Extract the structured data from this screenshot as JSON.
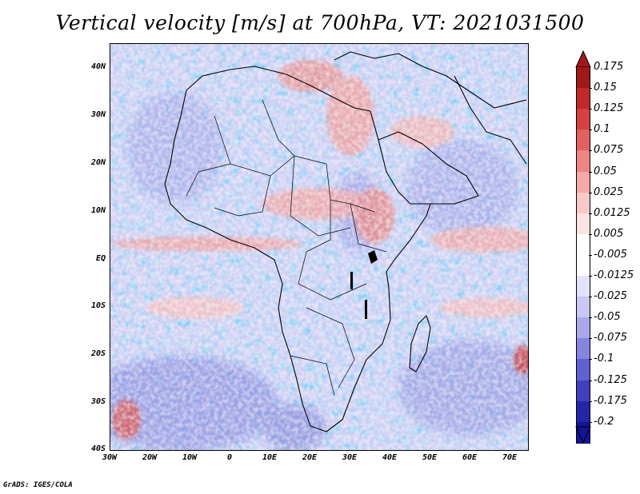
{
  "title": "Vertical velocity [m/s] at 700hPa, VT: 2021031500",
  "footer": "GrADS: IGES/COLA",
  "lat_labels": [
    "40N",
    "30N",
    "20N",
    "10N",
    "EQ",
    "10S",
    "20S",
    "30S",
    "40S"
  ],
  "lon_labels": [
    "30W",
    "20W",
    "10W",
    "0",
    "10E",
    "20E",
    "30E",
    "40E",
    "50E",
    "60E",
    "70E"
  ],
  "colorbar": {
    "labels": [
      "0.175",
      "0.15",
      "0.125",
      "0.1",
      "0.075",
      "0.05",
      "0.025",
      "0.0125",
      "0.005",
      "-0.005",
      "-0.0125",
      "-0.025",
      "-0.05",
      "-0.075",
      "-0.1",
      "-0.125",
      "-0.175",
      "-0.2"
    ],
    "colors": [
      "#a01818",
      "#c0282a",
      "#d64040",
      "#e36060",
      "#ee8585",
      "#f5a8a8",
      "#f9c8c8",
      "#fce2e2",
      "#ffffff",
      "#ffffff",
      "#e2e2f8",
      "#c8c8f2",
      "#a8a8ea",
      "#8585e0",
      "#6060d2",
      "#4040bf",
      "#2424a8",
      "#141496"
    ]
  },
  "map": {
    "region": "Africa",
    "lon_range": [
      -30,
      75
    ],
    "lat_range": [
      -40,
      45
    ]
  }
}
